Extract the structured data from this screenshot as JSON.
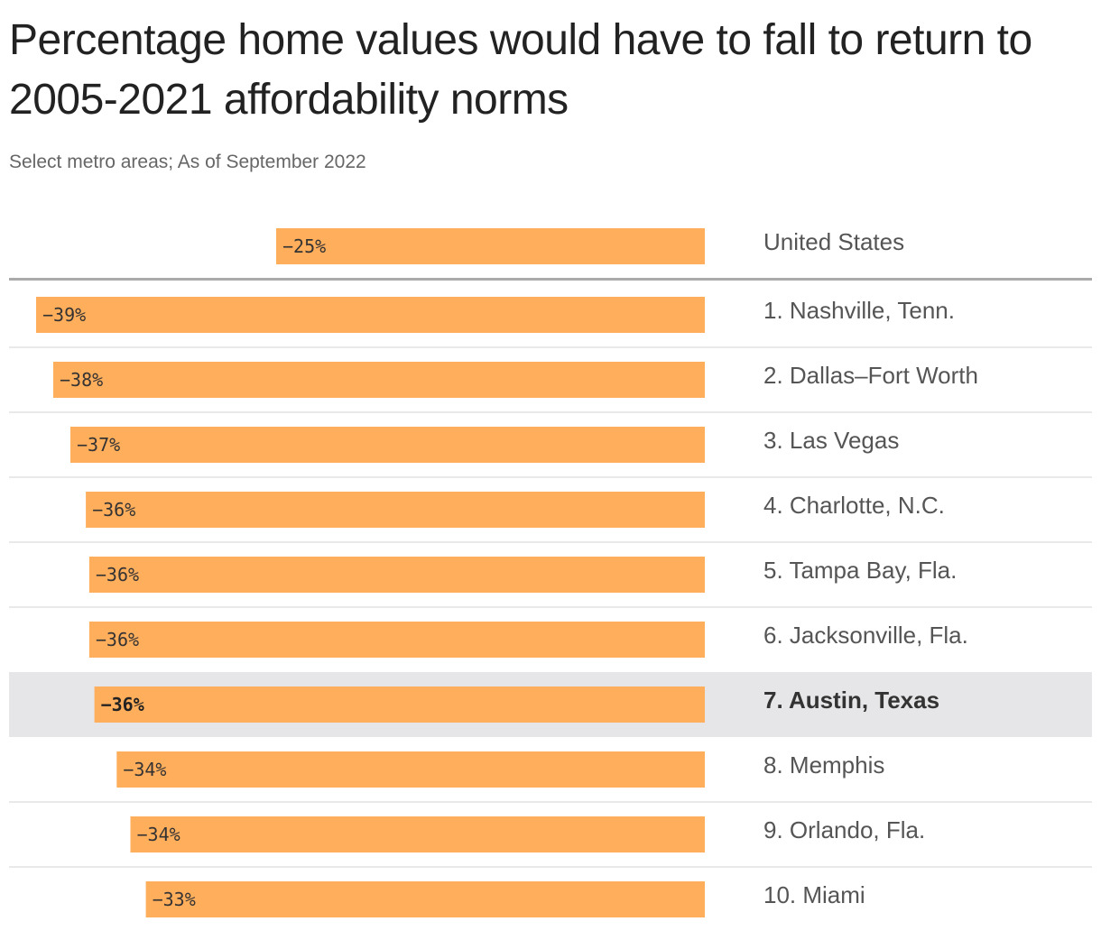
{
  "colors": {
    "bar": "#ffae5c",
    "highlight_row": "#e6e6e8",
    "divider": "#e2e2e2",
    "baseline_divider": "#aaaaaa"
  },
  "chart_data": {
    "type": "bar",
    "orientation": "horizontal",
    "title": "Percentage home values would have to fall to return to 2005-2021 affordability norms",
    "subtitle": "Select metro areas; As of September 2022",
    "xlim": [
      -40,
      0
    ],
    "reference": {
      "category": "United States",
      "value": -25,
      "label": "−25%"
    },
    "categories": [
      "1. Nashville, Tenn.",
      "2. Dallas–Fort Worth",
      "3. Las Vegas",
      "4. Charlotte, N.C.",
      "5. Tampa Bay, Fla.",
      "6. Jacksonville, Fla.",
      "7. Austin, Texas",
      "8. Memphis",
      "9. Orlando, Fla.",
      "10. Miami"
    ],
    "values": [
      -39.0,
      -38.0,
      -37.0,
      -36.1,
      -35.9,
      -35.9,
      -35.6,
      -34.3,
      -33.5,
      -32.6
    ],
    "labels": [
      "−39%",
      "−38%",
      "−37%",
      "−36%",
      "−36%",
      "−36%",
      "−36%",
      "−34%",
      "−34%",
      "−33%"
    ],
    "highlight": "7. Austin, Texas"
  }
}
